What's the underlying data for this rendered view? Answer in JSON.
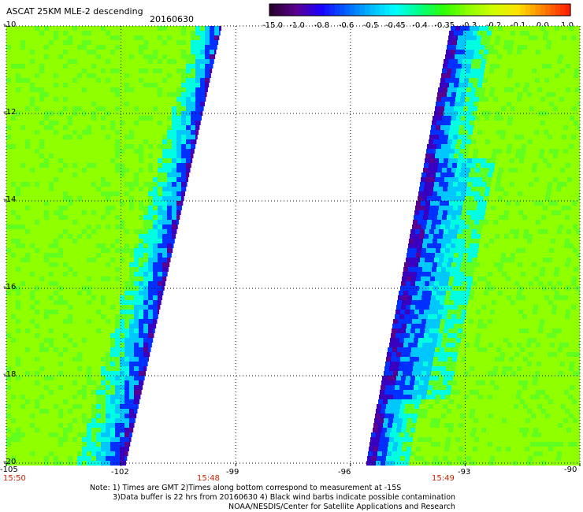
{
  "header": {
    "title": "ASCAT 25KM MLE-2 descending",
    "date": "20160630"
  },
  "colorbar": {
    "tick_labels": [
      "-15.0",
      "-1.0",
      "-0.8",
      "-0.6",
      "-0.5",
      "-0.45",
      "-0.4",
      "-0.35",
      "-0.3",
      "-0.2",
      "-0.1",
      "0.0",
      "1.0"
    ],
    "colors": [
      "#2a0030",
      "#5a0090",
      "#1a00ff",
      "#0060ff",
      "#00b8ff",
      "#00ffff",
      "#00ff80",
      "#30ff00",
      "#90ff00",
      "#d0ff00",
      "#ffe000",
      "#ff8000",
      "#ff2000"
    ]
  },
  "map": {
    "lat_labels": [
      "-10",
      "-12",
      "-14",
      "-16",
      "-18",
      "-20"
    ],
    "lon_labels": [
      "-105",
      "-102",
      "-99",
      "-96",
      "-93",
      "-90"
    ],
    "time_labels": [
      "15:50",
      "15:48",
      "15:49"
    ],
    "grid_lat": [
      -10,
      -12,
      -14,
      -16,
      -18,
      -20
    ],
    "grid_lon": [
      -105,
      -102,
      -99,
      -96,
      -93,
      -90
    ],
    "lat_range": [
      -20,
      -10
    ],
    "lon_range": [
      -105,
      -90
    ],
    "swath_colors": {
      "background": "#90ff00",
      "alt_green": "#60ff20",
      "cyan": "#00ffe0",
      "light_blue": "#00c8ff",
      "blue": "#0030ff",
      "dark_blue": "#3a00c0",
      "purple": "#5a0090"
    }
  },
  "notes": {
    "line1": "Note: 1) Times are GMT 2)Times along bottom correspond to measurement at -15S",
    "line2": "3)Data buffer is 22 hrs from 20160630 4) Black wind barbs indicate possible contamination",
    "line3": "NOAA/NESDIS/Center for Satellite Applications and Research"
  }
}
